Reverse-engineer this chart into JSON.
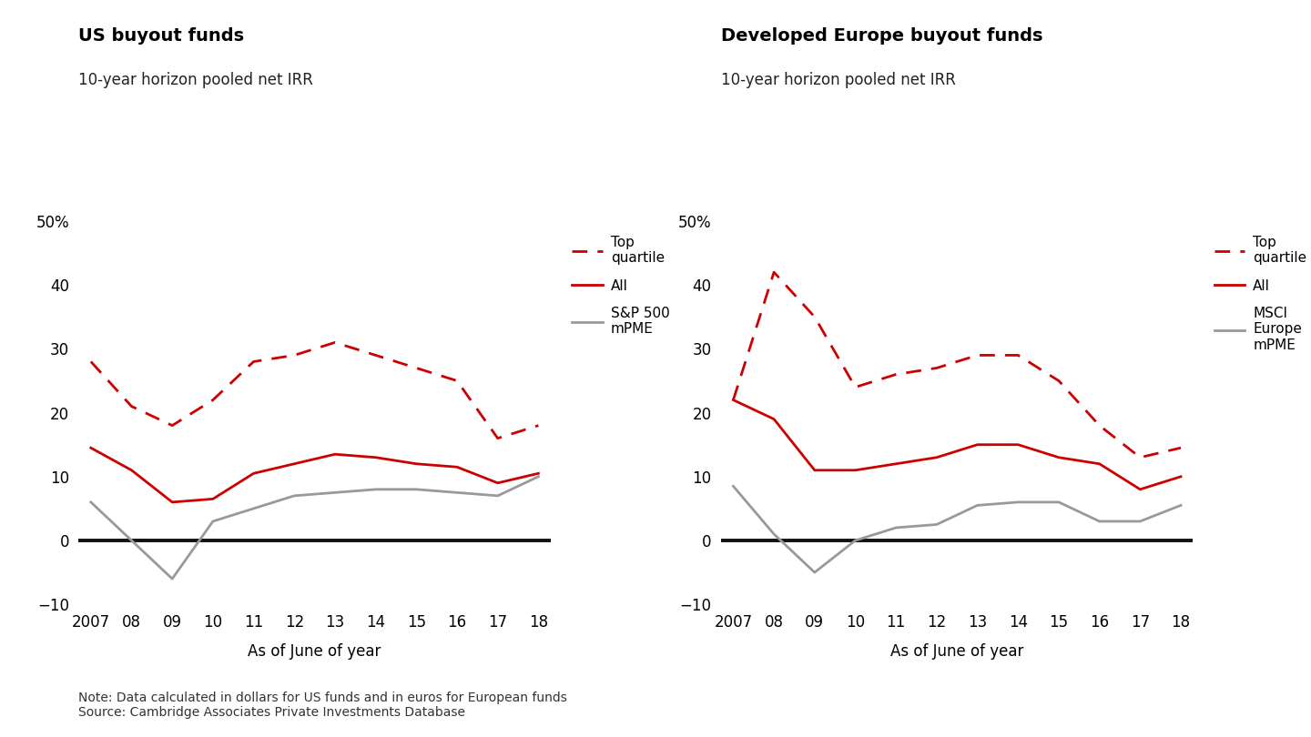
{
  "years": [
    2007,
    2008,
    2009,
    2010,
    2011,
    2012,
    2013,
    2014,
    2015,
    2016,
    2017,
    2018
  ],
  "us": {
    "title": "US buyout funds",
    "subtitle": "10-year horizon pooled net IRR",
    "top_quartile": [
      28,
      21,
      18,
      22,
      28,
      29,
      31,
      29,
      27,
      25,
      16,
      18
    ],
    "all": [
      14.5,
      11,
      6,
      6.5,
      10.5,
      12,
      13.5,
      13,
      12,
      11.5,
      9,
      10.5
    ],
    "benchmark": [
      6,
      0,
      -6,
      3,
      5,
      7,
      7.5,
      8,
      8,
      7.5,
      7,
      10
    ],
    "benchmark_label": "S&P 500\nmPME"
  },
  "europe": {
    "title": "Developed Europe buyout funds",
    "subtitle": "10-year horizon pooled net IRR",
    "top_quartile": [
      22,
      42,
      35,
      24,
      26,
      27,
      29,
      29,
      25,
      18,
      13,
      14.5
    ],
    "all": [
      22,
      19,
      11,
      11,
      12,
      13,
      15,
      15,
      13,
      12,
      8,
      10
    ],
    "benchmark": [
      8.5,
      1,
      -5,
      0,
      2,
      2.5,
      5.5,
      6,
      6,
      3,
      3,
      5.5
    ],
    "benchmark_label": "MSCI\nEurope\nmPME"
  },
  "top_quartile_color": "#cc0000",
  "all_color": "#cc0000",
  "benchmark_color": "#999999",
  "zero_line_color": "#111111",
  "ylim": [
    -10,
    50
  ],
  "yticks": [
    -10,
    0,
    10,
    20,
    30,
    40,
    50
  ],
  "note_line1": "Note: Data calculated in dollars for US funds and in euros for European funds",
  "note_line2": "Source: Cambridge Associates Private Investments Database",
  "x_label": "As of June of year"
}
